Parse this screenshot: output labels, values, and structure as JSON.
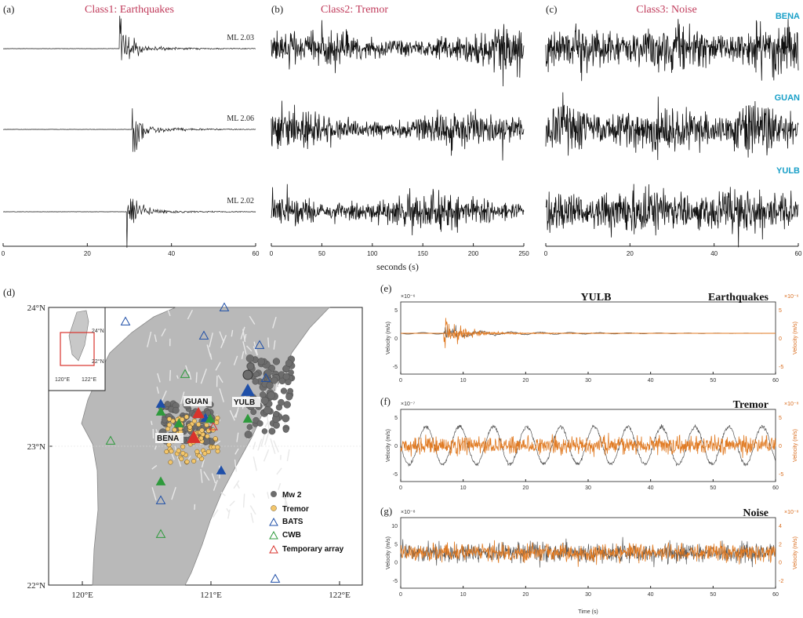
{
  "panels_top": [
    {
      "label": "(a)",
      "title": "Class1: Earthquakes",
      "ticks": [
        "0",
        "20",
        "40",
        "60"
      ],
      "tmax": 60,
      "traces": [
        {
          "tag": "ML 2.03"
        },
        {
          "tag": "ML 2.06"
        },
        {
          "tag": "ML 2.02"
        }
      ]
    },
    {
      "label": "(b)",
      "title": "Class2: Tremor",
      "ticks": [
        "0",
        "50",
        "100",
        "150",
        "200",
        "250"
      ],
      "tmax": 250
    },
    {
      "label": "(c)",
      "title": "Class3: Noise",
      "ticks": [
        "0",
        "20",
        "40",
        "60"
      ],
      "tmax": 60
    }
  ],
  "stations": [
    "BENA",
    "GUAN",
    "YULB"
  ],
  "xlabel_top": "seconds (s)",
  "map": {
    "label": "(d)",
    "lat_labels": [
      "24°N",
      "23°N",
      "22°N"
    ],
    "lon_labels": [
      "120°E",
      "121°E",
      "122°E"
    ],
    "inset_labels": {
      "lat1": "24°N",
      "lat2": "22°N",
      "lon1": "120°E",
      "lon2": "122°E"
    },
    "station_labels": [
      "GUAN",
      "YULB",
      "BENA"
    ],
    "legend": [
      "Mw 2",
      "Tremor",
      "BATS",
      "CWB",
      "Temporary array"
    ],
    "colors": {
      "bats": "#1f4fa8",
      "cwb": "#2e9a3c",
      "temp": "#d9332c",
      "tremor": "#f3c66b",
      "eq": "#6d6d6d"
    }
  },
  "wave_panels": [
    {
      "label": "(e)",
      "station": "YULB",
      "cls": "Earthquakes",
      "ylabel": "Velocity (m/s)",
      "left_exp": "×10⁻⁶",
      "right_exp": "×10⁻⁶",
      "left_ticks": [
        "5",
        "0",
        "-5"
      ],
      "right_ticks": [
        "5",
        "0",
        "-5"
      ]
    },
    {
      "label": "(f)",
      "station": "",
      "cls": "Tremor",
      "ylabel": "Velocity (m/s)",
      "left_exp": "×10⁻⁷",
      "right_exp": "×10⁻⁸",
      "left_ticks": [
        "5",
        "0",
        "-5"
      ],
      "right_ticks": [
        "5",
        "0",
        "-5"
      ]
    },
    {
      "label": "(g)",
      "station": "",
      "cls": "Noise",
      "ylabel": "Velocity (m/s)",
      "left_exp": "×10⁻⁸",
      "right_exp": "×10⁻⁸",
      "left_ticks": [
        "10",
        "5",
        "0",
        "-5"
      ],
      "right_ticks": [
        "4",
        "2",
        "0",
        "-2"
      ]
    }
  ],
  "wave_xticks": [
    "0",
    "10",
    "20",
    "30",
    "40",
    "50",
    "60"
  ],
  "wave_xlabel": "Time (s)",
  "colors": {
    "orange": "#e07a22",
    "title": "#c03a5a",
    "station": "#1aa0c8"
  }
}
